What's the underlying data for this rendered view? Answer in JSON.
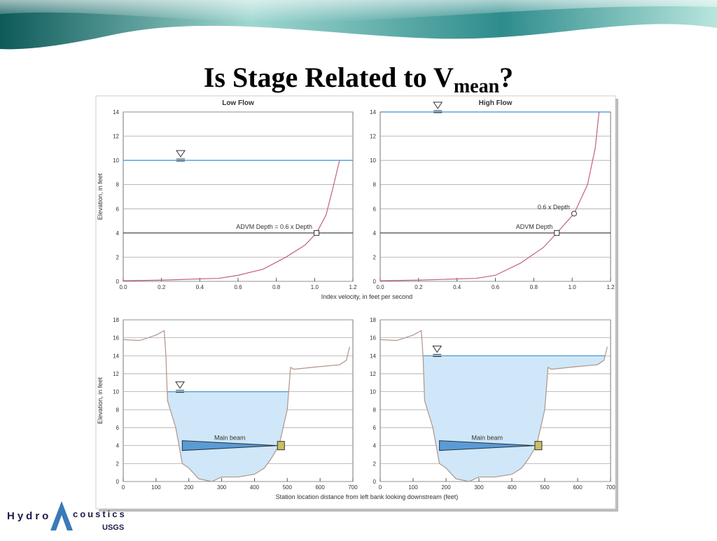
{
  "slide": {
    "title": "Is Stage Related to V",
    "title_sub": "mean",
    "title_end": "?"
  },
  "logo": {
    "left": "Hydro",
    "right": "coustics",
    "org": "USGS"
  },
  "chart_data": [
    {
      "type": "line",
      "title": "Low Flow",
      "ylabel": "Elevation, in feet",
      "xlabel": "Index velocity, in feet per second",
      "xlim": [
        0,
        1.2
      ],
      "xticks": [
        {
          "value": 0,
          "label": "0.0"
        },
        0.2,
        0.4,
        0.6,
        0.8,
        {
          "value": 1,
          "label": "1.0"
        },
        1.2
      ],
      "ylim": [
        0,
        14
      ],
      "yticks": [
        0,
        2,
        4,
        6,
        8,
        10,
        12,
        14
      ],
      "series": [
        {
          "color": "#c2607c",
          "x": [
            0,
            0.2,
            0.5,
            0.6,
            0.73,
            0.85,
            0.95,
            1.01,
            1.06,
            1.1,
            1.13
          ],
          "values": [
            0.05,
            0.1,
            0.25,
            0.5,
            1,
            2,
            3,
            4,
            5.5,
            8,
            10
          ]
        }
      ],
      "water_level": 10,
      "advm_depth": 4,
      "markers": [
        {
          "x": 1.01,
          "y": 4,
          "shape": "square",
          "label": "ADVM Depth = 0.6 x Depth"
        }
      ]
    },
    {
      "type": "line",
      "title": "High Flow",
      "xlim": [
        0,
        1.2
      ],
      "xticks": [
        {
          "value": 0,
          "label": "0.0"
        },
        0.2,
        0.4,
        0.6,
        0.8,
        {
          "value": 1,
          "label": "1.0"
        },
        1.2
      ],
      "ylim": [
        0,
        14
      ],
      "yticks": [
        0,
        2,
        4,
        6,
        8,
        10,
        12,
        14
      ],
      "series": [
        {
          "color": "#c2607c",
          "x": [
            0,
            0.2,
            0.5,
            0.6,
            0.73,
            0.85,
            0.92,
            1.01,
            1.08,
            1.12,
            1.14
          ],
          "values": [
            0.05,
            0.1,
            0.25,
            0.5,
            1.5,
            2.8,
            4,
            5.6,
            8,
            11,
            14
          ]
        }
      ],
      "water_level": 14,
      "advm_depth": 4,
      "markers": [
        {
          "x": 0.92,
          "y": 4,
          "shape": "square",
          "label": "ADVM Depth"
        },
        {
          "x": 1.01,
          "y": 5.6,
          "shape": "circle",
          "label": "0.6 x Depth"
        }
      ]
    },
    {
      "type": "cross-section",
      "ylabel": "Elevation, in feet",
      "xlabel": "Station location distance from left bank looking downstream (feet)",
      "xlim": [
        0,
        700
      ],
      "xticks": [
        0,
        100,
        200,
        300,
        400,
        500,
        600,
        700
      ],
      "ylim": [
        0,
        18
      ],
      "yticks": [
        0,
        2,
        4,
        6,
        8,
        10,
        12,
        14,
        16,
        18
      ],
      "series": [
        {
          "color": "#b09488",
          "x": [
            0,
            50,
            100,
            125,
            130,
            135,
            160,
            170,
            180,
            200,
            230,
            270,
            300,
            350,
            400,
            430,
            450,
            475,
            500,
            510,
            520,
            600,
            660,
            680,
            690
          ],
          "values": [
            15.8,
            15.7,
            16.3,
            16.8,
            14,
            9,
            6,
            4,
            2,
            1.5,
            0.3,
            0,
            0.5,
            0.5,
            0.8,
            1.5,
            2.5,
            4,
            8,
            12.7,
            12.5,
            12.8,
            13,
            13.5,
            15
          ]
        }
      ],
      "water_level": 10,
      "beam": {
        "label": "Main beam",
        "x_start": 180,
        "x_end": 470,
        "elevation": 4
      }
    },
    {
      "type": "cross-section",
      "xlim": [
        0,
        700
      ],
      "xticks": [
        0,
        100,
        200,
        300,
        400,
        500,
        600,
        700
      ],
      "ylim": [
        0,
        18
      ],
      "yticks": [
        0,
        2,
        4,
        6,
        8,
        10,
        12,
        14,
        16,
        18
      ],
      "series": [
        {
          "color": "#b09488",
          "x": [
            0,
            50,
            100,
            125,
            130,
            135,
            160,
            170,
            180,
            200,
            230,
            270,
            300,
            350,
            400,
            430,
            450,
            475,
            500,
            510,
            520,
            600,
            660,
            680,
            690
          ],
          "values": [
            15.8,
            15.7,
            16.3,
            16.8,
            14,
            9,
            6,
            4,
            2,
            1.5,
            0.3,
            0,
            0.5,
            0.5,
            0.8,
            1.5,
            2.5,
            4,
            8,
            12.7,
            12.5,
            12.8,
            13,
            13.5,
            15
          ]
        }
      ],
      "water_level": 14,
      "beam": {
        "label": "Main beam",
        "x_start": 180,
        "x_end": 470,
        "elevation": 4
      }
    }
  ]
}
